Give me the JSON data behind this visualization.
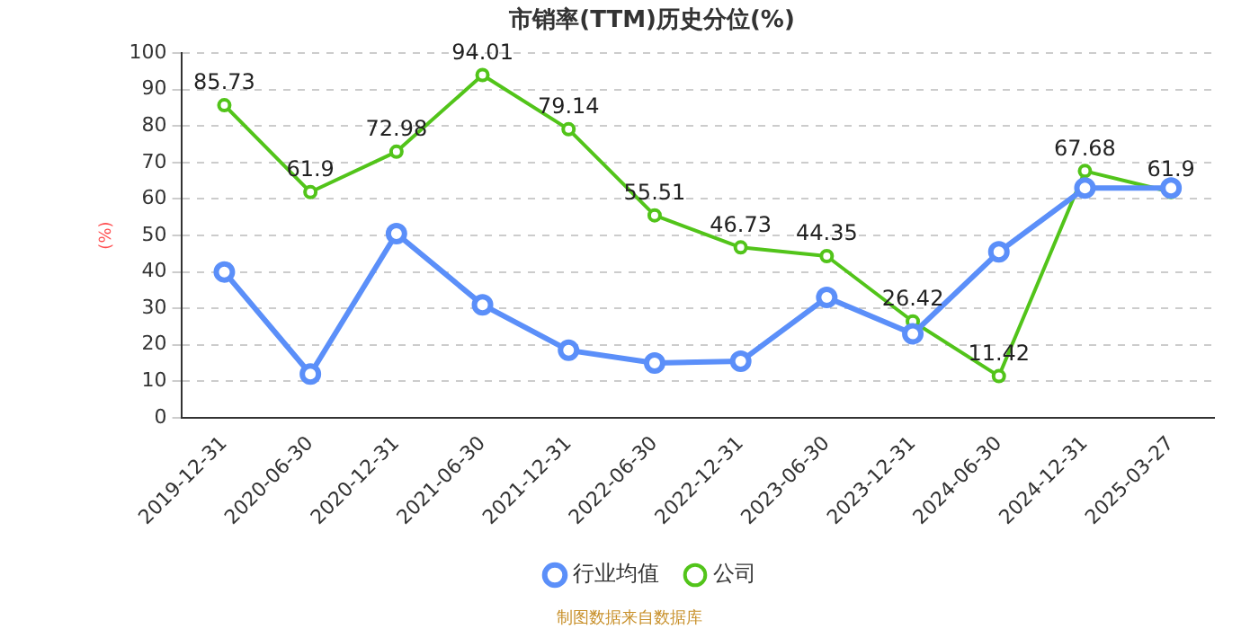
{
  "chart_data": {
    "type": "line",
    "title": "市销率(TTM)历史分位(%)",
    "ylabel": "(%)",
    "categories": [
      "2019-12-31",
      "2020-06-30",
      "2020-12-31",
      "2021-06-30",
      "2021-12-31",
      "2022-06-30",
      "2022-12-31",
      "2023-06-30",
      "2023-12-31",
      "2024-06-30",
      "2024-12-31",
      "2025-03-27"
    ],
    "series": [
      {
        "name": "公司",
        "color": "#52c41a",
        "values": [
          85.73,
          61.9,
          72.98,
          94.01,
          79.14,
          55.51,
          46.73,
          44.35,
          26.42,
          11.42,
          67.68,
          61.9
        ],
        "value_labels": [
          "85.73",
          "61.9",
          "72.98",
          "94.01",
          "79.14",
          "55.51",
          "46.73",
          "44.35",
          "26.42",
          "11.42",
          "67.68",
          "61.9"
        ]
      },
      {
        "name": "行业均值",
        "color": "#5b8ff9",
        "values": [
          40,
          12,
          50.5,
          31,
          18.5,
          15,
          15.5,
          33,
          23,
          45.5,
          63,
          63
        ]
      }
    ],
    "ylim": [
      0,
      100
    ],
    "yticks": [
      0,
      10,
      20,
      30,
      40,
      50,
      60,
      70,
      80,
      90,
      100
    ],
    "grid": "y",
    "legend": "bottom",
    "marker": "circle",
    "line_style": "solid",
    "annotations": [
      "制图数据来自数据库"
    ]
  }
}
